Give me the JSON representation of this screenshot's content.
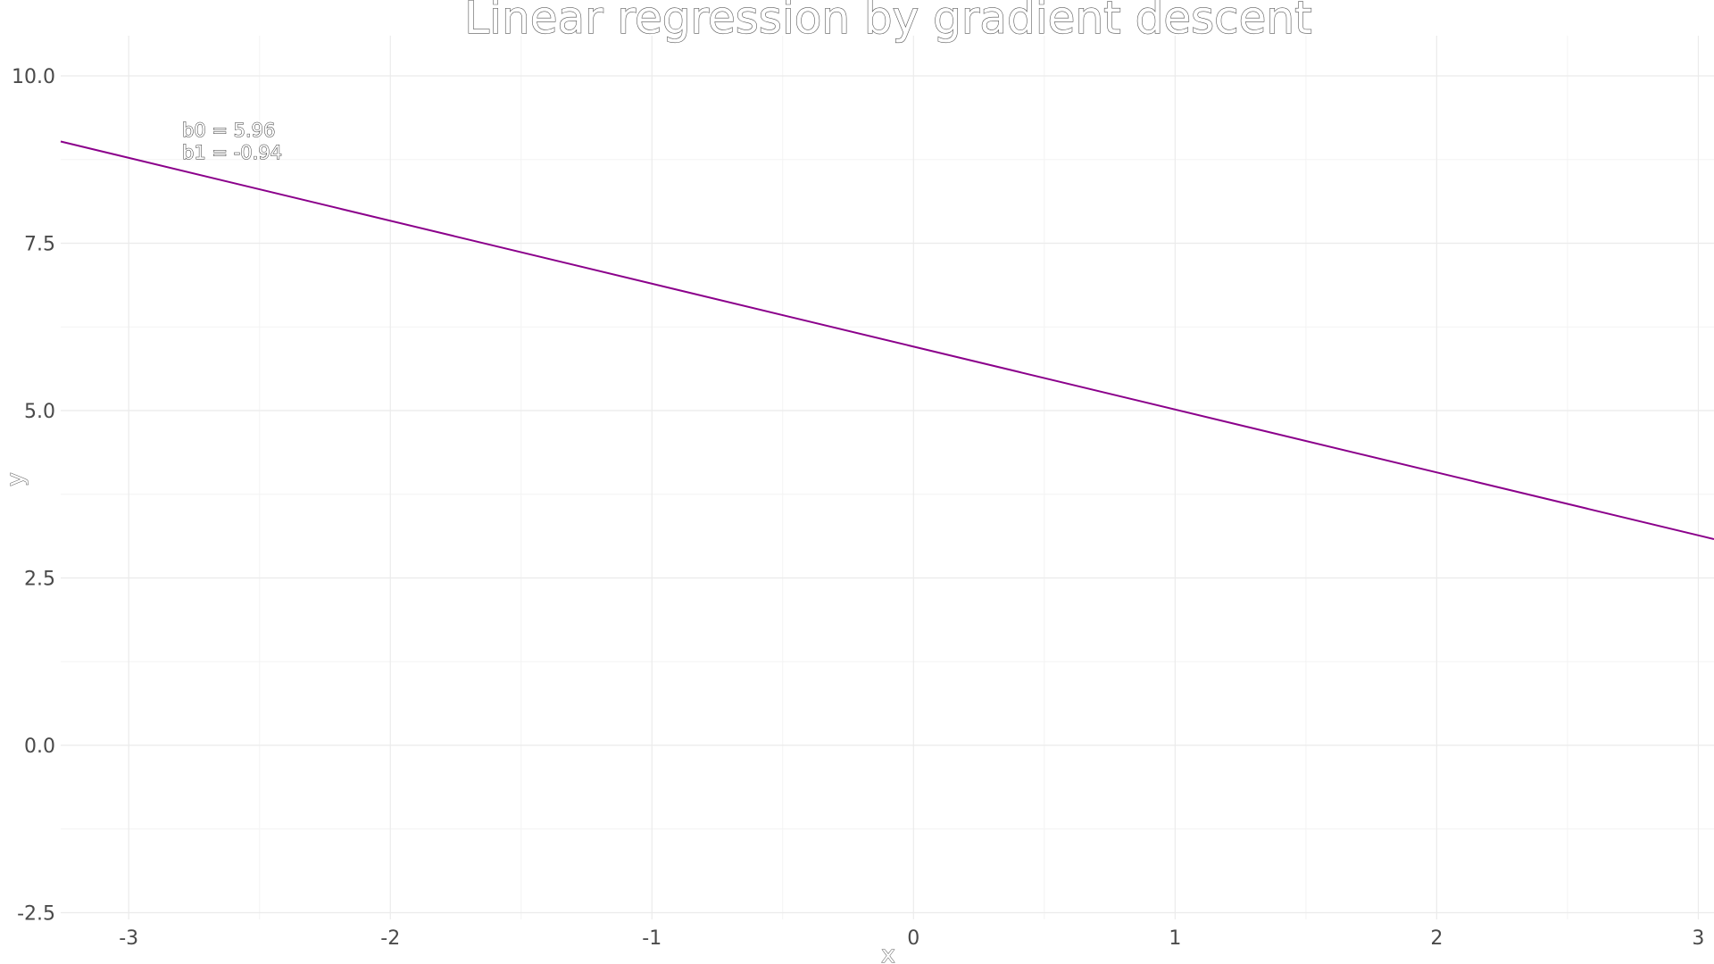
{
  "chart_data": {
    "type": "line",
    "title": "Linear regression by gradient descent",
    "xlabel": "x",
    "ylabel": "y",
    "xlim": [
      -3.26,
      3.06
    ],
    "ylim": [
      -2.6,
      10.6
    ],
    "x_ticks": [
      "-3",
      "-2",
      "-1",
      "0",
      "1",
      "2",
      "3"
    ],
    "y_ticks": [
      "-2.5",
      "0.0",
      "2.5",
      "5.0",
      "7.5",
      "10.0"
    ],
    "grid": true,
    "series": [
      {
        "color": "#8b008b",
        "x": [
          -3.26,
          3.06
        ],
        "y": [
          9.02,
          3.08
        ]
      }
    ],
    "annotations": {
      "b0": "b0 = 5.96",
      "b1": "b1 = -0.94"
    }
  }
}
